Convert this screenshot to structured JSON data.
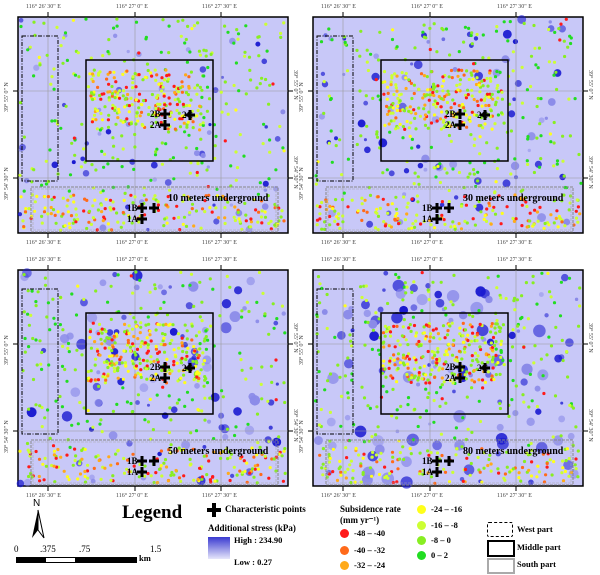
{
  "panels": [
    {
      "title": "10 meters underground"
    },
    {
      "title": "30 meters underground"
    },
    {
      "title": "50 meters underground"
    },
    {
      "title": "80 meters underground"
    }
  ],
  "axes": {
    "lon": [
      "116° 26' 30\" E",
      "116° 27' 0\" E",
      "116° 27' 30\" E"
    ],
    "lat": [
      "39° 55' 0\" N",
      "39° 54' 30\" N"
    ]
  },
  "points": [
    "2B",
    "2C",
    "2A",
    "1B",
    "1A"
  ],
  "legend": {
    "title": "Legend",
    "north": "N",
    "scale": {
      "ticks": [
        "0",
        ".375",
        ".75",
        "1.5"
      ],
      "unit": "km"
    },
    "char_points": "Characteristic points",
    "stress": {
      "title": "Additional stress (kPa)",
      "high": "High : 234.90",
      "low": "Low : 0.27",
      "color": "#3a3ad0"
    },
    "subsidence": {
      "title": "Subsidence rate",
      "unit": "(mm yr⁻¹)",
      "classes": [
        {
          "label": "-48 – -40",
          "color": "#ff1a1a"
        },
        {
          "label": "-40 – -32",
          "color": "#ff6a1a"
        },
        {
          "label": "-32 – -24",
          "color": "#ffaa1a"
        },
        {
          "label": "-24 – -16",
          "color": "#ffff1a"
        },
        {
          "label": "-16 – -8",
          "color": "#ccff33"
        },
        {
          "label": "-8 – 0",
          "color": "#88ee22"
        },
        {
          "label": "0 – 2",
          "color": "#22dd22"
        }
      ]
    },
    "parts": [
      "West part",
      "Middle part",
      "South part"
    ]
  }
}
